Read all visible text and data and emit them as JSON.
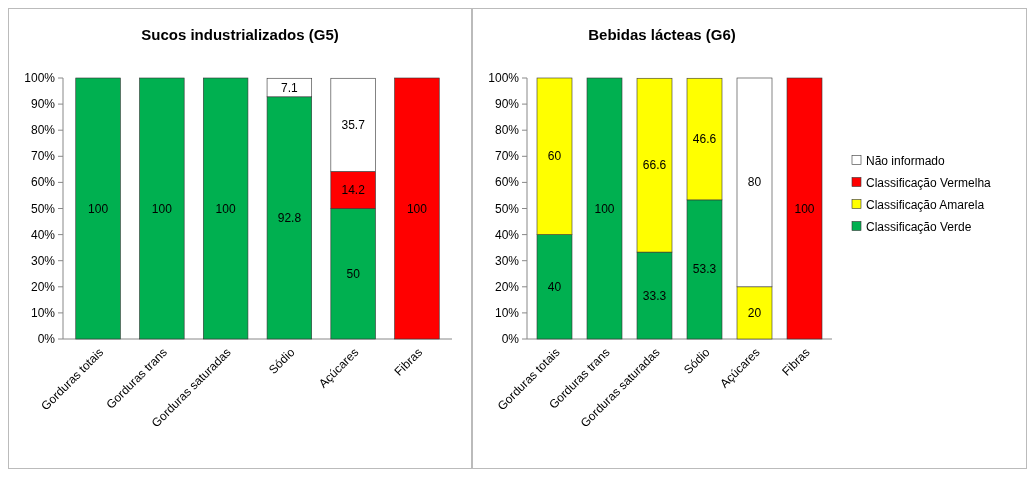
{
  "chart_data": [
    {
      "type": "bar",
      "title": "Sucos industrializados (G5)",
      "stacked": true,
      "data_labels": true,
      "categories": [
        "Gorduras totais",
        "Gorduras trans",
        "Gorduras saturadas",
        "Sódio",
        "Açúcares",
        "Fibras"
      ],
      "ylim": [
        0,
        100
      ],
      "yticks": [
        {
          "value": 0,
          "label": "0%"
        },
        {
          "value": 10,
          "label": "10%"
        },
        {
          "value": 20,
          "label": "20%"
        },
        {
          "value": 30,
          "label": "30%"
        },
        {
          "value": 40,
          "label": "40%"
        },
        {
          "value": 50,
          "label": "50%"
        },
        {
          "value": 60,
          "label": "60%"
        },
        {
          "value": 70,
          "label": "70%"
        },
        {
          "value": 80,
          "label": "80%"
        },
        {
          "value": 90,
          "label": "90%"
        },
        {
          "value": 100,
          "label": "100%"
        }
      ],
      "series": [
        {
          "color": "#00b050",
          "values": [
            100,
            100,
            100,
            92.8,
            50,
            null
          ]
        },
        {
          "color": "#ff0000",
          "values": [
            null,
            null,
            null,
            null,
            14.2,
            100
          ]
        },
        {
          "color": "#ffffff",
          "values": [
            null,
            null,
            null,
            7.1,
            35.7,
            null
          ]
        }
      ]
    },
    {
      "type": "bar",
      "title": "Bebidas lácteas (G6)",
      "stacked": true,
      "data_labels": true,
      "legend": "right",
      "categories": [
        "Gorduras totais",
        "Gorduras trans",
        "Gorduras saturadas",
        "Sódio",
        "Açúcares",
        "Fibras"
      ],
      "ylim": [
        0,
        100
      ],
      "yticks": [
        {
          "value": 0,
          "label": "0%"
        },
        {
          "value": 10,
          "label": "10%"
        },
        {
          "value": 20,
          "label": "20%"
        },
        {
          "value": 30,
          "label": "30%"
        },
        {
          "value": 40,
          "label": "40%"
        },
        {
          "value": 50,
          "label": "50%"
        },
        {
          "value": 60,
          "label": "60%"
        },
        {
          "value": 70,
          "label": "70%"
        },
        {
          "value": 80,
          "label": "80%"
        },
        {
          "value": 90,
          "label": "90%"
        },
        {
          "value": 100,
          "label": "100%"
        }
      ],
      "series": [
        {
          "name": "Classificação Verde",
          "color": "#00b050",
          "values": [
            40,
            100,
            33.3,
            53.3,
            null,
            null
          ]
        },
        {
          "name": "Classificação Amarela",
          "color": "#ffff00",
          "values": [
            60,
            null,
            66.6,
            46.6,
            20,
            null
          ]
        },
        {
          "name": "Classificação Vermelha",
          "color": "#ff0000",
          "values": [
            null,
            null,
            null,
            null,
            null,
            100
          ]
        },
        {
          "name": "Não informado",
          "color": "#ffffff",
          "values": [
            null,
            null,
            null,
            null,
            80,
            null
          ]
        }
      ]
    }
  ]
}
